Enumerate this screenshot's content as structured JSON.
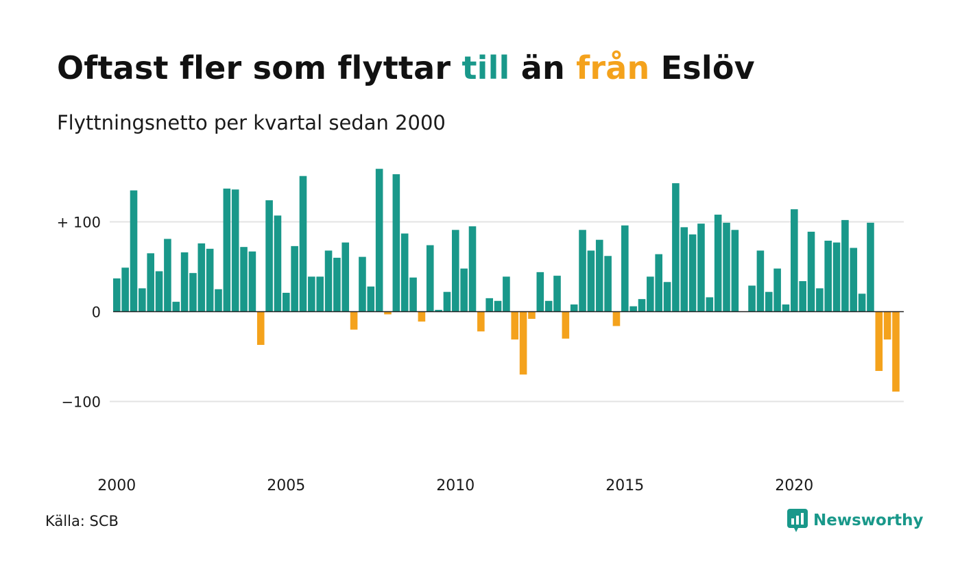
{
  "title": {
    "part1": "Oftast fler som flyttar ",
    "part2": "till",
    "part3": " än ",
    "part4": "från",
    "part5": " Eslöv"
  },
  "subtitle": "Flyttningsnetto per kvartal sedan 2000",
  "source": "Källa: SCB",
  "brand": "Newsworthy",
  "colors": {
    "positive": "#19988a",
    "negative": "#f4a21c",
    "grid": "#e3e3e3",
    "zero": "#222222"
  },
  "chart_data": {
    "type": "bar",
    "start_year": 2000,
    "quarters_per_year": 4,
    "ylim": [
      -150,
      160
    ],
    "yticks": [
      {
        "value": 100,
        "label": "+ 100"
      },
      {
        "value": 0,
        "label": "0"
      },
      {
        "value": -100,
        "label": "−100"
      }
    ],
    "xticks": [
      {
        "year": 2000,
        "label": "2000"
      },
      {
        "year": 2005,
        "label": "2005"
      },
      {
        "year": 2010,
        "label": "2010"
      },
      {
        "year": 2015,
        "label": "2015"
      },
      {
        "year": 2020,
        "label": "2020"
      }
    ],
    "values": [
      37,
      49,
      135,
      26,
      65,
      45,
      81,
      11,
      66,
      43,
      76,
      70,
      25,
      137,
      136,
      72,
      67,
      -37,
      124,
      107,
      21,
      73,
      151,
      39,
      39,
      68,
      60,
      77,
      -20,
      61,
      28,
      159,
      -3,
      153,
      87,
      38,
      -11,
      74,
      2,
      22,
      91,
      48,
      95,
      -22,
      15,
      12,
      39,
      -31,
      -70,
      -8,
      44,
      12,
      40,
      -30,
      8,
      91,
      68,
      80,
      62,
      -16,
      96,
      6,
      14,
      39,
      64,
      33,
      143,
      94,
      86,
      98,
      16,
      108,
      99,
      91,
      0,
      29,
      68,
      22,
      48,
      8,
      114,
      34,
      89,
      26,
      79,
      77,
      102,
      71,
      20,
      99,
      -66,
      -31,
      -89
    ],
    "grid": true,
    "legend": "none"
  }
}
